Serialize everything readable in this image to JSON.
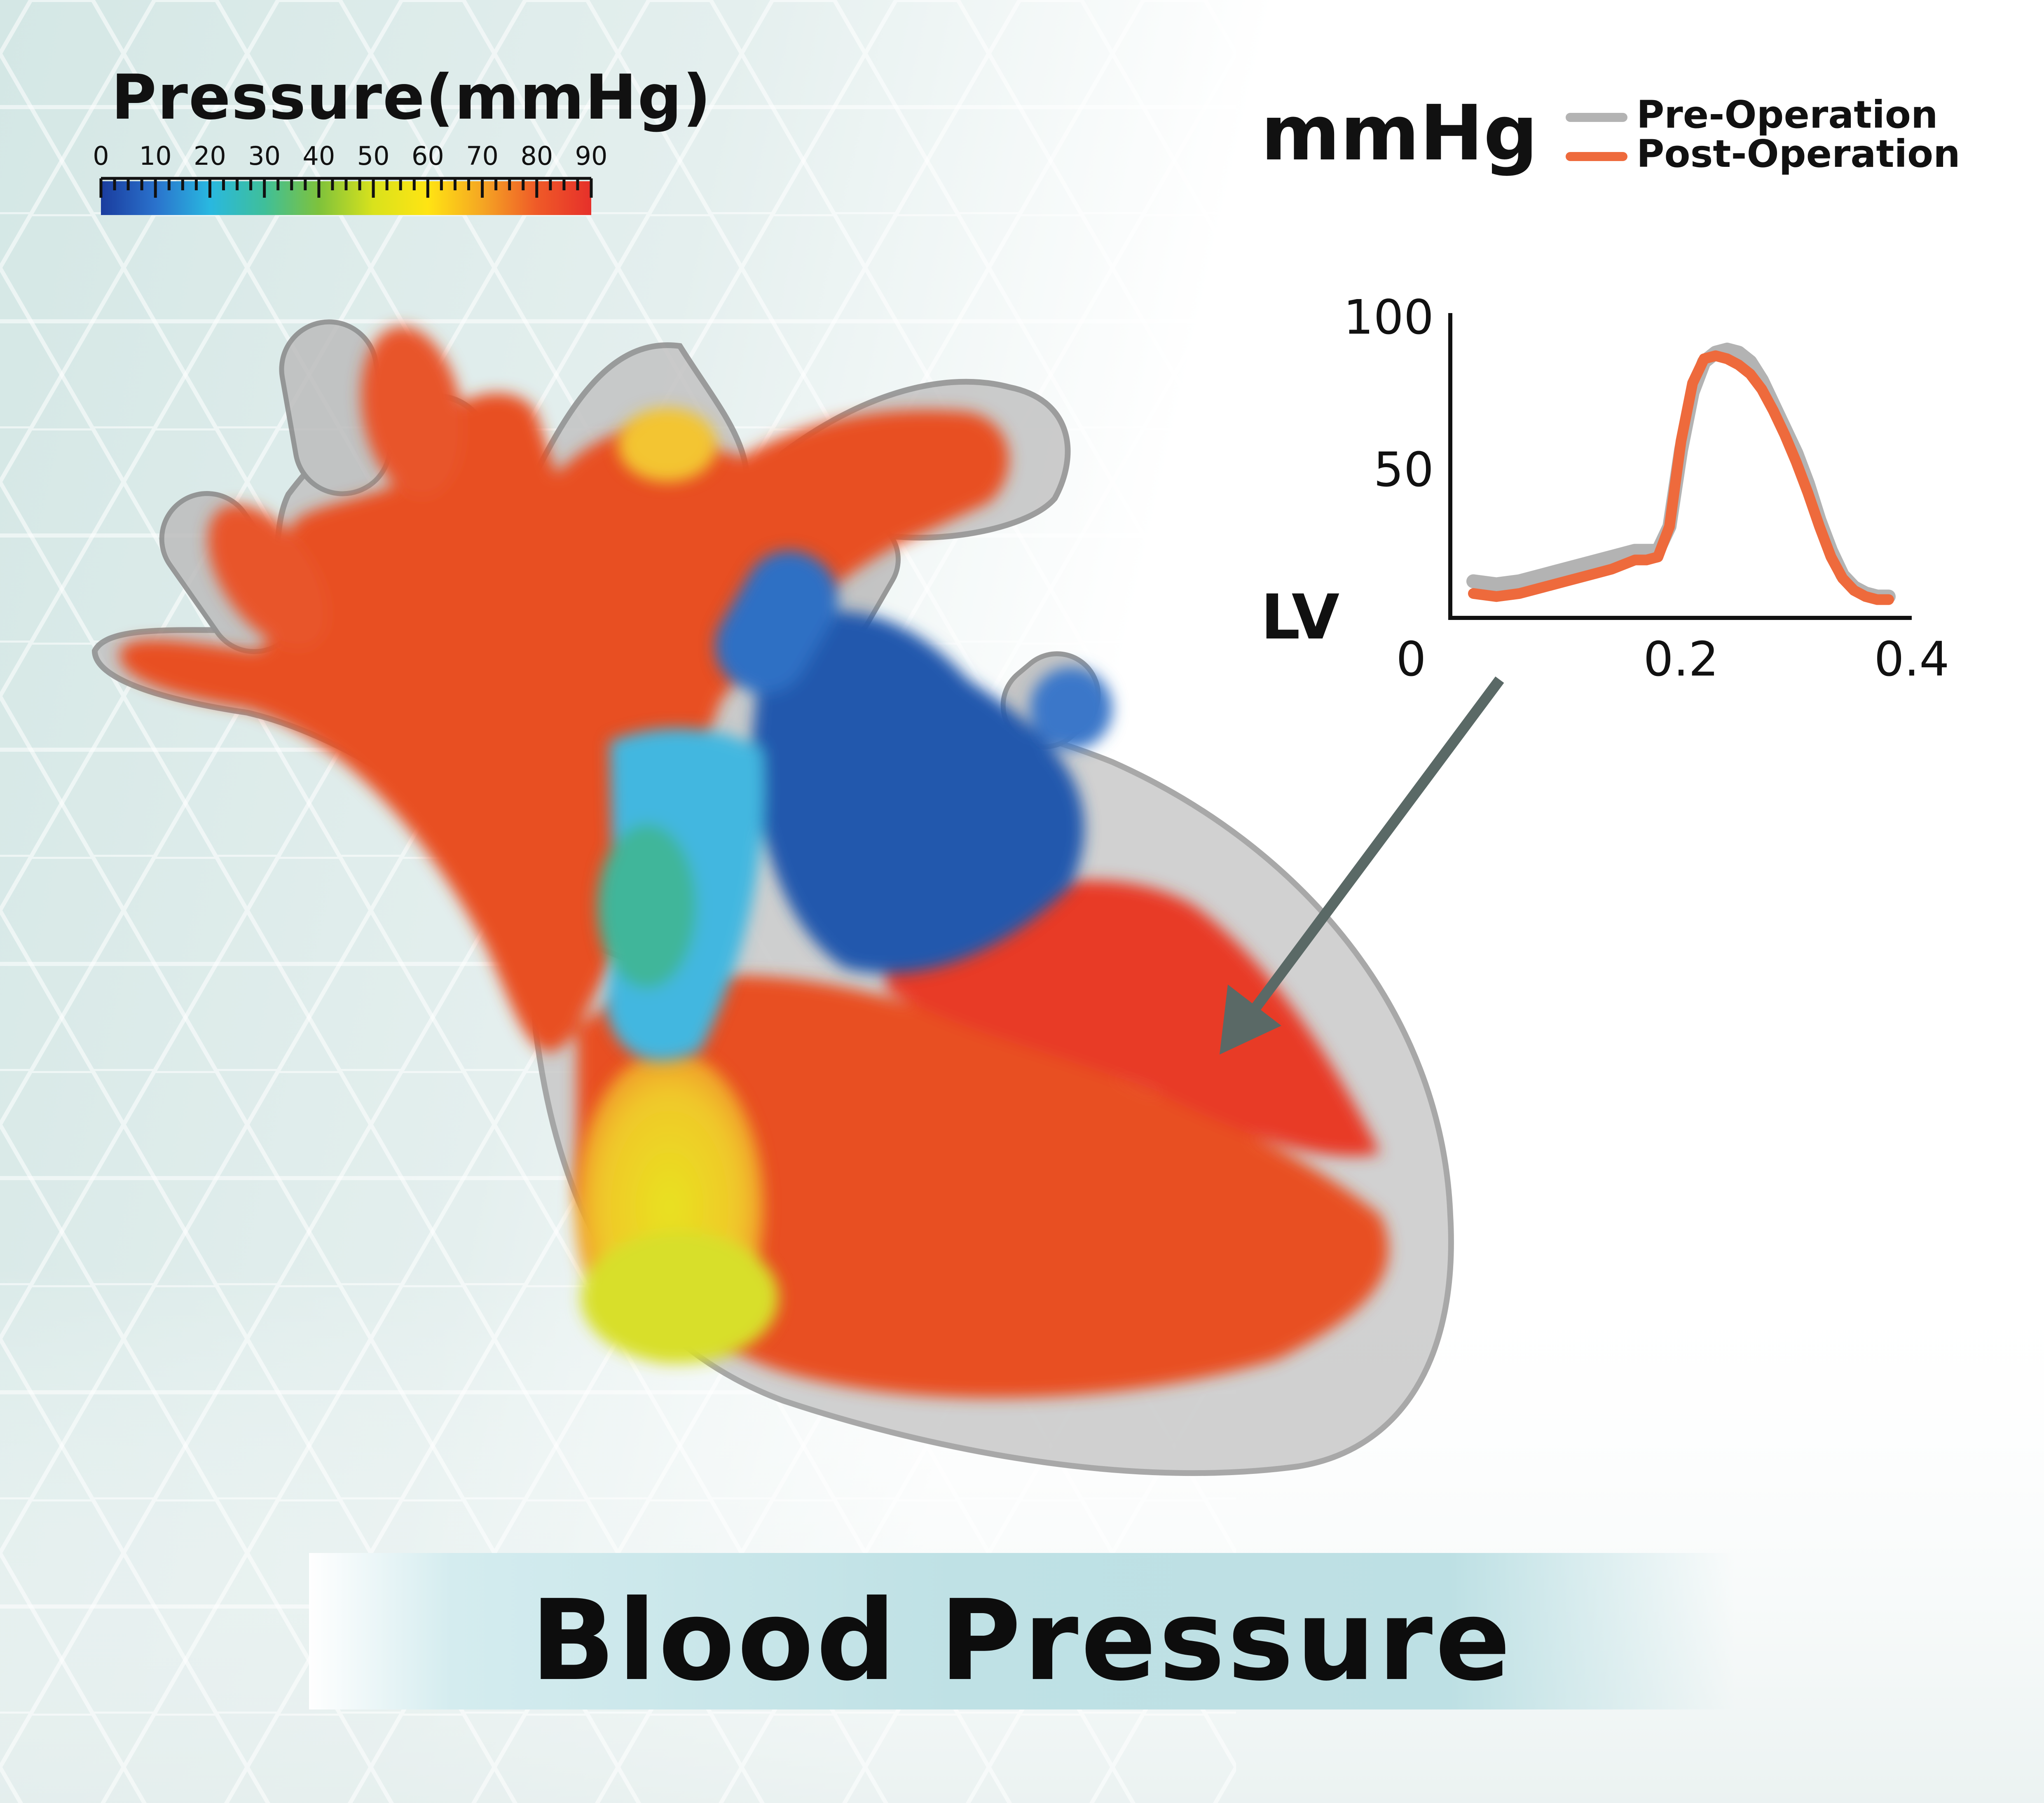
{
  "colorbar": {
    "title": "Pressure(mmHg)",
    "ticks": [
      "0",
      "10",
      "20",
      "30",
      "40",
      "50",
      "60",
      "70",
      "80",
      "90"
    ],
    "colors": [
      "#1a3c9e",
      "#2a72cc",
      "#29b8e0",
      "#3fbf9a",
      "#7ec23c",
      "#d9e21c",
      "#ffe413",
      "#f5a623",
      "#ef5a28",
      "#e6302a"
    ]
  },
  "legend": {
    "unit": "mmHg",
    "items": [
      {
        "label": "Pre-Operation",
        "color": "#b3b3b3"
      },
      {
        "label": "Post-Operation",
        "color": "#ee6a3c"
      }
    ]
  },
  "chart_data": {
    "type": "line",
    "ylabel": "LV",
    "xlim": [
      0,
      0.4
    ],
    "ylim": [
      0,
      100
    ],
    "xticks": [
      "0",
      "0.2",
      "0.4"
    ],
    "yticks": [
      "100",
      "50"
    ],
    "series": [
      {
        "name": "Pre-Operation",
        "color": "#b3b3b3",
        "x": [
          0.02,
          0.04,
          0.06,
          0.08,
          0.1,
          0.12,
          0.14,
          0.16,
          0.17,
          0.18,
          0.19,
          0.2,
          0.21,
          0.22,
          0.23,
          0.24,
          0.25,
          0.26,
          0.27,
          0.28,
          0.29,
          0.3,
          0.31,
          0.32,
          0.33,
          0.34,
          0.35,
          0.36,
          0.37,
          0.38
        ],
        "y": [
          12,
          11,
          12,
          14,
          16,
          18,
          20,
          22,
          22,
          22,
          30,
          55,
          74,
          84,
          87,
          88,
          87,
          84,
          78,
          70,
          62,
          54,
          44,
          32,
          22,
          14,
          10,
          8,
          7,
          7
        ]
      },
      {
        "name": "Post-Operation",
        "color": "#ee6a3c",
        "x": [
          0.02,
          0.04,
          0.06,
          0.08,
          0.1,
          0.12,
          0.14,
          0.16,
          0.17,
          0.18,
          0.19,
          0.2,
          0.21,
          0.22,
          0.23,
          0.24,
          0.25,
          0.26,
          0.27,
          0.28,
          0.29,
          0.3,
          0.31,
          0.32,
          0.33,
          0.34,
          0.35,
          0.36,
          0.37,
          0.38
        ],
        "y": [
          8,
          7,
          8,
          10,
          12,
          14,
          16,
          19,
          19,
          20,
          30,
          58,
          77,
          85,
          86,
          85,
          83,
          80,
          75,
          68,
          60,
          51,
          41,
          30,
          20,
          13,
          9,
          7,
          6,
          6
        ]
      }
    ]
  },
  "banner": {
    "text": "Blood Pressure"
  }
}
